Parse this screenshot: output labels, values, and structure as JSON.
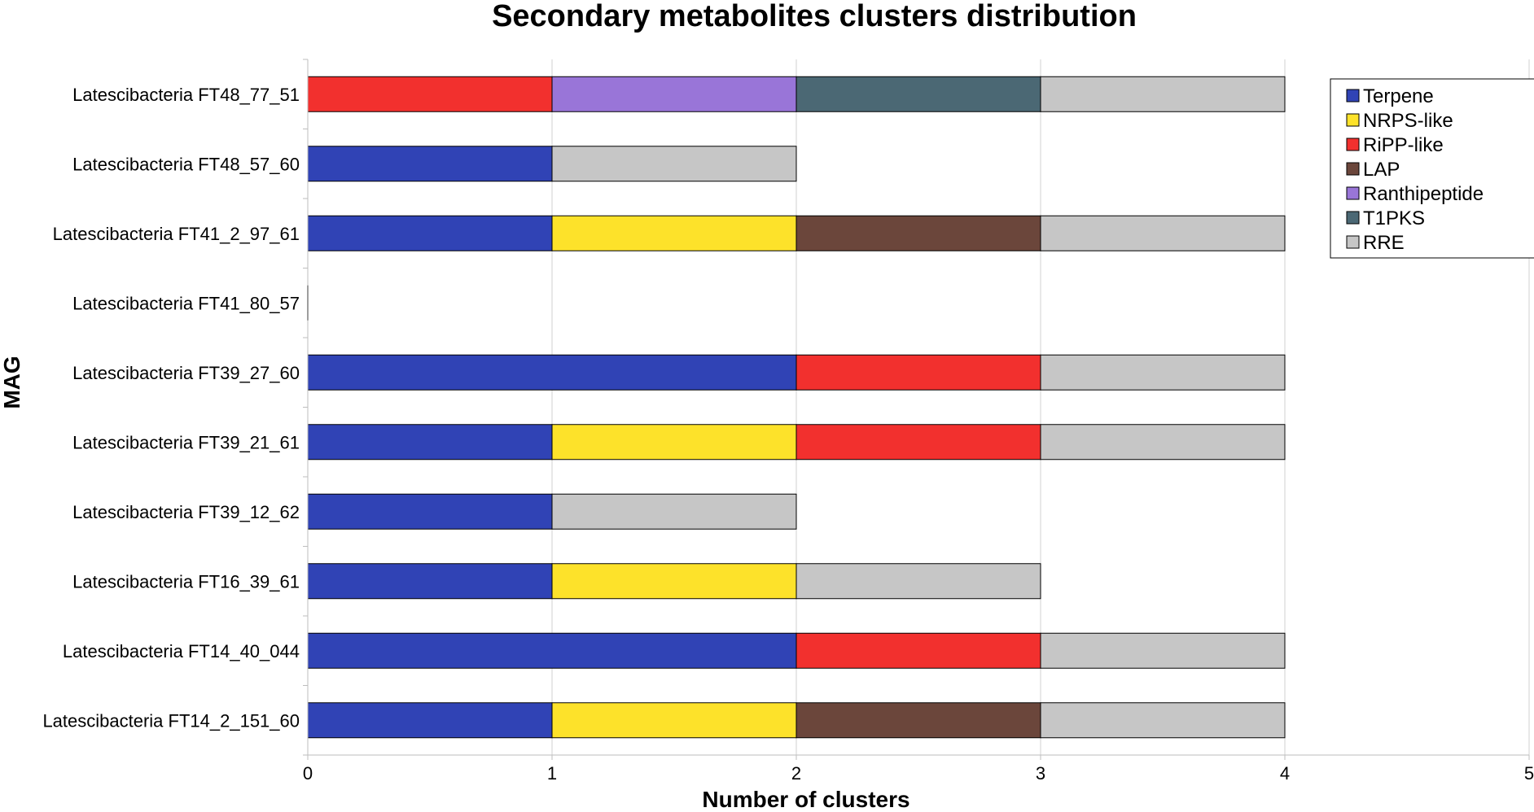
{
  "chart_data": {
    "type": "bar",
    "orientation": "horizontal",
    "stacked": true,
    "title": "Secondary metabolites clusters distribution",
    "xlabel": "Number of clusters",
    "ylabel": "MAG",
    "xlim": [
      0,
      5
    ],
    "xticks": [
      0,
      1,
      2,
      3,
      4,
      5
    ],
    "grid": "vertical",
    "legend_position": "top-right",
    "categories": [
      "Latescibacteria FT48_77_51",
      "Latescibacteria FT48_57_60",
      "Latescibacteria FT41_2_97_61",
      "Latescibacteria FT41_80_57",
      "Latescibacteria FT39_27_60",
      "Latescibacteria FT39_21_61",
      "Latescibacteria FT39_12_62",
      "Latescibacteria FT16_39_61",
      "Latescibacteria FT14_40_044",
      "Latescibacteria FT14_2_151_60"
    ],
    "series": [
      {
        "name": "Terpene",
        "color": "#3043b5",
        "values": [
          0,
          1,
          1,
          0,
          2,
          1,
          1,
          1,
          2,
          1
        ]
      },
      {
        "name": "NRPS-like",
        "color": "#fde22a",
        "values": [
          0,
          0,
          1,
          0,
          0,
          1,
          0,
          1,
          0,
          1
        ]
      },
      {
        "name": "RiPP-like",
        "color": "#f2302e",
        "values": [
          1,
          0,
          0,
          0,
          1,
          1,
          0,
          0,
          1,
          0
        ]
      },
      {
        "name": "LAP",
        "color": "#6b463b",
        "values": [
          0,
          0,
          1,
          0,
          0,
          0,
          0,
          0,
          0,
          1
        ]
      },
      {
        "name": "Ranthipeptide",
        "color": "#9975d8",
        "values": [
          1,
          0,
          0,
          0,
          0,
          0,
          0,
          0,
          0,
          0
        ]
      },
      {
        "name": "T1PKS",
        "color": "#4b6874",
        "values": [
          1,
          0,
          0,
          0,
          0,
          0,
          0,
          0,
          0,
          0
        ]
      },
      {
        "name": "RRE",
        "color": "#c6c6c6",
        "values": [
          1,
          1,
          1,
          0,
          1,
          1,
          1,
          1,
          1,
          1
        ]
      }
    ]
  }
}
